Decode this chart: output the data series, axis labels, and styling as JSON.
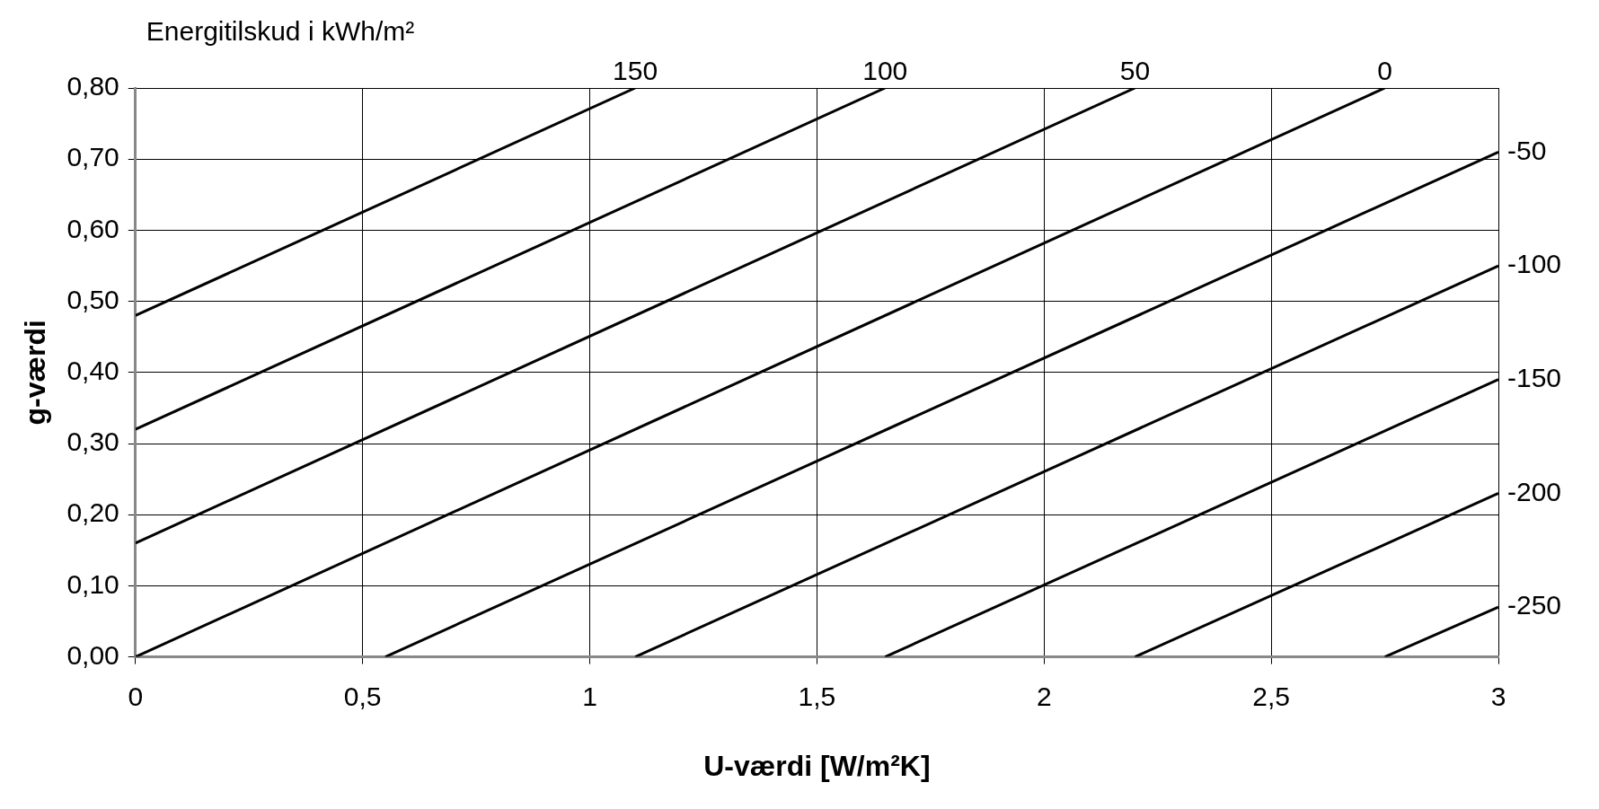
{
  "chart_data": {
    "type": "line",
    "legend_title": "Energitilskud i kWh/m²",
    "xlabel": "U-værdi [W/m²K]",
    "ylabel": "g-værdi",
    "xlim": [
      0,
      3
    ],
    "xticks": [
      0,
      {
        "value": 0.5,
        "label": "0,5"
      },
      1,
      {
        "value": 1.5,
        "label": "1,5"
      },
      2,
      {
        "value": 2.5,
        "label": "2,5"
      },
      3
    ],
    "ylim": [
      0,
      0.8
    ],
    "yticks": [
      {
        "value": 0,
        "label": "0,00"
      },
      {
        "value": 0.1,
        "label": "0,10"
      },
      {
        "value": 0.2,
        "label": "0,20"
      },
      {
        "value": 0.3,
        "label": "0,30"
      },
      {
        "value": 0.4,
        "label": "0,40"
      },
      {
        "value": 0.5,
        "label": "0,50"
      },
      {
        "value": 0.6,
        "label": "0,60"
      },
      {
        "value": 0.7,
        "label": "0,70"
      },
      {
        "value": 0.8,
        "label": "0,80"
      }
    ],
    "grid": true,
    "legend": false,
    "marker": "none",
    "line_style": "solid",
    "series": [
      {
        "name": "150",
        "color": "#000000",
        "x": [
          0,
          1.1
        ],
        "values": [
          0.48,
          0.8
        ]
      },
      {
        "name": "100",
        "color": "#000000",
        "x": [
          0,
          1.65
        ],
        "values": [
          0.32,
          0.8
        ]
      },
      {
        "name": "50",
        "color": "#000000",
        "x": [
          0,
          2.2
        ],
        "values": [
          0.16,
          0.8
        ]
      },
      {
        "name": "0",
        "color": "#000000",
        "x": [
          0,
          2.75
        ],
        "values": [
          0,
          0.8
        ]
      },
      {
        "name": "-50",
        "color": "#000000",
        "x": [
          0.55,
          3
        ],
        "values": [
          0,
          0.71
        ]
      },
      {
        "name": "-100",
        "color": "#000000",
        "x": [
          1.1,
          3
        ],
        "values": [
          0,
          0.55
        ]
      },
      {
        "name": "-150",
        "color": "#000000",
        "x": [
          1.65,
          3
        ],
        "values": [
          0,
          0.39
        ]
      },
      {
        "name": "-200",
        "color": "#000000",
        "x": [
          2.2,
          3
        ],
        "values": [
          0,
          0.23
        ]
      },
      {
        "name": "-250",
        "color": "#000000",
        "x": [
          2.75,
          3
        ],
        "values": [
          0,
          0.07
        ]
      }
    ]
  }
}
